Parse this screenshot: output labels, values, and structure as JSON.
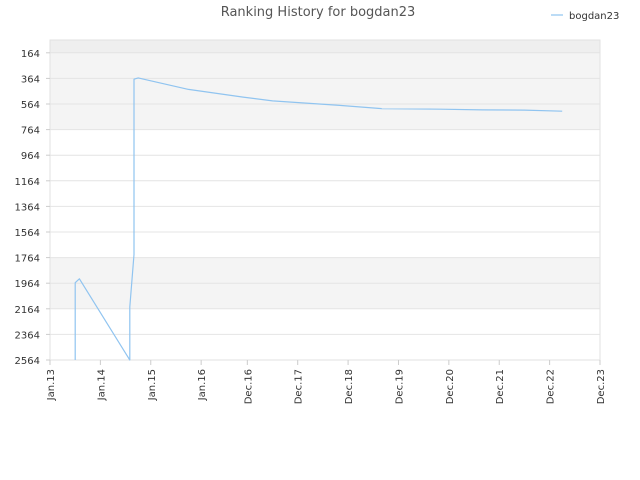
{
  "chart_data": {
    "type": "line",
    "title": "Ranking History for bogdan23",
    "xlabel": "",
    "ylabel": "",
    "y_inverted": true,
    "ylim": [
      64,
      2564
    ],
    "yticks": [
      164,
      364,
      564,
      764,
      964,
      1164,
      1364,
      1564,
      1764,
      1964,
      2164,
      2364,
      2564
    ],
    "xlim": [
      "2013-01",
      "2023-12"
    ],
    "xticks": [
      {
        "date": "2013-01",
        "label": "Jan.13"
      },
      {
        "date": "2014-01",
        "label": "Jan.14"
      },
      {
        "date": "2015-01",
        "label": "Jan.15"
      },
      {
        "date": "2016-01",
        "label": "Jan.16"
      },
      {
        "date": "2016-12",
        "label": "Dec.16"
      },
      {
        "date": "2017-12",
        "label": "Dec.17"
      },
      {
        "date": "2018-12",
        "label": "Dec.18"
      },
      {
        "date": "2019-12",
        "label": "Dec.19"
      },
      {
        "date": "2020-12",
        "label": "Dec.20"
      },
      {
        "date": "2021-12",
        "label": "Dec.21"
      },
      {
        "date": "2022-12",
        "label": "Dec.22"
      },
      {
        "date": "2023-12",
        "label": "Dec.23"
      }
    ],
    "grid": true,
    "legend_position": "top-right",
    "line_color": "#90c4f0",
    "series": [
      {
        "name": "bogdan23",
        "points": [
          {
            "date": "2013-07",
            "rank": 2564
          },
          {
            "date": "2013-07",
            "rank": 2150
          },
          {
            "date": "2013-07",
            "rank": 1960
          },
          {
            "date": "2013-08",
            "rank": 1930
          },
          {
            "date": "2014-08",
            "rank": 2564
          },
          {
            "date": "2014-08",
            "rank": 2150
          },
          {
            "date": "2014-09",
            "rank": 1740
          },
          {
            "date": "2014-09",
            "rank": 1640
          },
          {
            "date": "2014-09",
            "rank": 960
          },
          {
            "date": "2014-09",
            "rank": 900
          },
          {
            "date": "2014-09",
            "rank": 450
          },
          {
            "date": "2014-09",
            "rank": 370
          },
          {
            "date": "2014-10",
            "rank": 360
          },
          {
            "date": "2015-10",
            "rank": 450
          },
          {
            "date": "2016-11",
            "rank": 510
          },
          {
            "date": "2017-06",
            "rank": 540
          },
          {
            "date": "2018-10",
            "rank": 575
          },
          {
            "date": "2019-08",
            "rank": 600
          },
          {
            "date": "2020-10",
            "rank": 605
          },
          {
            "date": "2021-08",
            "rank": 610
          },
          {
            "date": "2022-06",
            "rank": 612
          },
          {
            "date": "2023-03",
            "rank": 620
          }
        ]
      }
    ]
  }
}
